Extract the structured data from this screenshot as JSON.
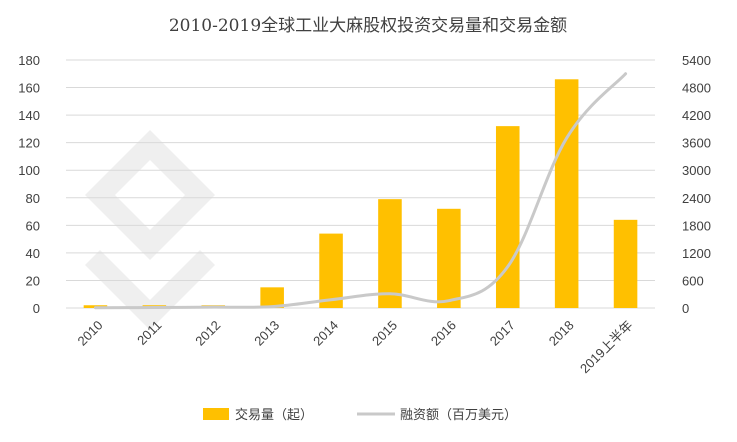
{
  "chart_data": {
    "type": "bar",
    "title": "2010-2019全球工业大麻股权投资交易量和交易金额",
    "categories": [
      "2010",
      "2011",
      "2012",
      "2013",
      "2014",
      "2015",
      "2016",
      "2017",
      "2018",
      "2019上半年"
    ],
    "y_left": {
      "min": 0,
      "max": 180,
      "ticks": [
        0,
        20,
        40,
        60,
        80,
        100,
        120,
        140,
        160,
        180
      ]
    },
    "y_right": {
      "min": 0,
      "max": 5400,
      "ticks": [
        0,
        600,
        1200,
        1800,
        2400,
        3000,
        3600,
        4200,
        4800,
        5400
      ]
    },
    "series": [
      {
        "name": "交易量（起）",
        "kind": "bar",
        "axis": "left",
        "color": "#FFC000",
        "values": [
          2,
          2,
          2,
          15,
          54,
          79,
          72,
          132,
          166,
          64
        ]
      },
      {
        "name": "融资额（百万美元）",
        "kind": "line",
        "axis": "right",
        "color": "#C9C9C9",
        "values": [
          5,
          10,
          20,
          30,
          180,
          310,
          160,
          900,
          3700,
          5100
        ]
      }
    ],
    "grid": true,
    "legend_position": "bottom"
  }
}
